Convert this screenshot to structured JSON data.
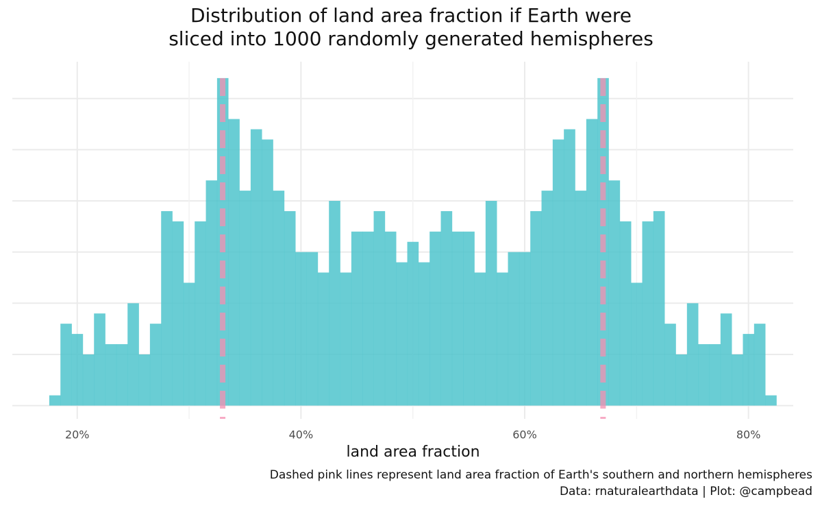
{
  "chart_data": {
    "type": "histogram",
    "title": [
      "Distribution of land area fraction if Earth were",
      "sliced into 1000 randomly generated hemispheres"
    ],
    "x_label": "land area fraction",
    "caption": [
      "Dashed pink lines represent land area fraction of Earth's southern and northern hemispheres",
      "Data: rnaturalearthdata | Plot: @campbead"
    ],
    "bins": [
      17.5,
      18.5,
      19.5,
      20.5,
      21.5,
      22.5,
      23.5,
      24.5,
      25.5,
      26.5,
      27.5,
      28.5,
      29.5,
      30.5,
      31.5,
      32.5,
      33.5,
      34.5,
      35.5,
      36.5,
      37.5,
      38.5,
      39.5,
      40.5,
      41.5,
      42.5,
      43.5,
      44.5,
      45.5,
      46.5,
      47.5,
      48.5,
      49.5,
      50.5,
      51.5,
      52.5,
      53.5,
      54.5,
      55.5,
      56.5,
      57.5,
      58.5,
      59.5,
      60.5,
      61.5,
      62.5,
      63.5,
      64.5,
      65.5,
      66.5,
      67.5,
      68.5,
      69.5,
      70.5,
      71.5,
      72.5,
      73.5,
      74.5,
      75.5,
      76.5,
      77.5,
      78.5,
      79.5,
      80.5,
      81.5,
      82.5
    ],
    "values": [
      1,
      8,
      7,
      5,
      9,
      6,
      6,
      10,
      5,
      8,
      19,
      18,
      12,
      18,
      22,
      32,
      28,
      21,
      27,
      26,
      21,
      19,
      15,
      15,
      13,
      20,
      13,
      17,
      17,
      19,
      17,
      14,
      16,
      14,
      17,
      19,
      17,
      17,
      13,
      20,
      13,
      15,
      15,
      19,
      21,
      26,
      27,
      21,
      28,
      32,
      22,
      18,
      12,
      18,
      19,
      8,
      5,
      10,
      6,
      6,
      9,
      5,
      7,
      8,
      1
    ],
    "color": "#4fc4cc",
    "reference_lines": [
      33,
      67
    ],
    "reference_color": "#f48fb1",
    "xlim": [
      14.2,
      84
    ],
    "xticks": [
      {
        "value": 20,
        "label": "20%"
      },
      {
        "value": 40,
        "label": "40%"
      },
      {
        "value": 60,
        "label": "60%"
      },
      {
        "value": 80,
        "label": "80%"
      }
    ],
    "xminor": [
      30,
      50,
      70
    ],
    "ylim": [
      -1.3,
      33.6
    ],
    "yticks": [
      0,
      5,
      10,
      15,
      20,
      25,
      30
    ],
    "grid": true
  }
}
